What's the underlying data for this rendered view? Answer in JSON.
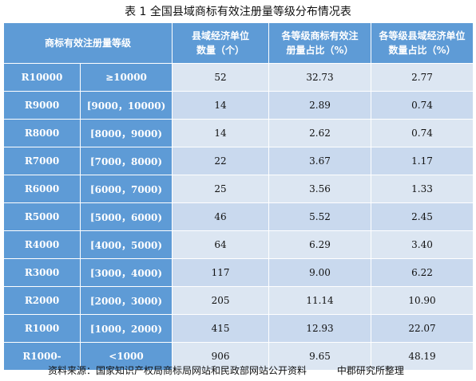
{
  "title": "表 1  全国县域商标有效注册量等级分布情况表",
  "headers": {
    "grade": "商标有效注册量等级",
    "count": "县域经济单位数量（个）",
    "share_reg": "各等级商标有效注册量占比（%）",
    "share_count": "各等级县域经济单位数量占比（%）"
  },
  "rows": [
    {
      "grade": "R10000",
      "range": "≥10000",
      "count": "52",
      "share_reg": "32.73",
      "share_count": "2.77"
    },
    {
      "grade": "R9000",
      "range": "[9000，10000)",
      "count": "14",
      "share_reg": "2.89",
      "share_count": "0.74"
    },
    {
      "grade": "R8000",
      "range": "[8000，9000)",
      "count": "14",
      "share_reg": "2.62",
      "share_count": "0.74"
    },
    {
      "grade": "R7000",
      "range": "[7000，8000)",
      "count": "22",
      "share_reg": "3.67",
      "share_count": "1.17"
    },
    {
      "grade": "R6000",
      "range": "[6000，7000)",
      "count": "25",
      "share_reg": "3.56",
      "share_count": "1.33"
    },
    {
      "grade": "R5000",
      "range": "[5000，6000)",
      "count": "46",
      "share_reg": "5.52",
      "share_count": "2.45"
    },
    {
      "grade": "R4000",
      "range": "[4000，5000)",
      "count": "64",
      "share_reg": "6.29",
      "share_count": "3.40"
    },
    {
      "grade": "R3000",
      "range": "[3000，4000)",
      "count": "117",
      "share_reg": "9.00",
      "share_count": "6.22"
    },
    {
      "grade": "R2000",
      "range": "[2000，3000)",
      "count": "205",
      "share_reg": "11.14",
      "share_count": "10.90"
    },
    {
      "grade": "R1000",
      "range": "[1000，2000)",
      "count": "415",
      "share_reg": "12.93",
      "share_count": "22.07"
    },
    {
      "grade": "R1000-",
      "range": "<1000",
      "count": "906",
      "share_reg": "9.65",
      "share_count": "48.19"
    }
  ],
  "source": "资料来源：国家知识产权局商标局网站和民政部网站公开资料",
  "org": "中郡研究所整理"
}
